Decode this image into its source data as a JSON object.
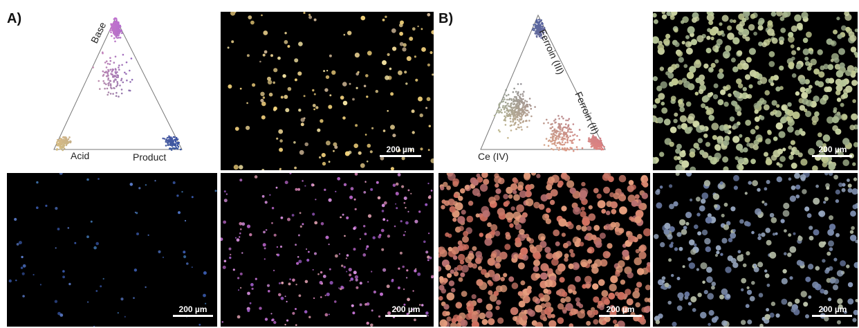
{
  "panels": {
    "a": {
      "letter": "A)",
      "labels": {
        "top": "Base",
        "left": "Acid",
        "right": "Product"
      }
    },
    "b": {
      "letter": "B)",
      "labels": {
        "left": "Ce (IV)",
        "edge_upper": "Ferroin (III)",
        "edge_lower": "Ferroin (II)"
      }
    }
  },
  "scale_bar_label": "200 µm",
  "colors": {
    "background": "#000000",
    "a_top": "#c070d0",
    "a_left": "#d8c080",
    "a_right": "#3050a0",
    "b_top": "#5060a0",
    "b_left": "#d0d090",
    "b_right": "#e08080"
  }
}
